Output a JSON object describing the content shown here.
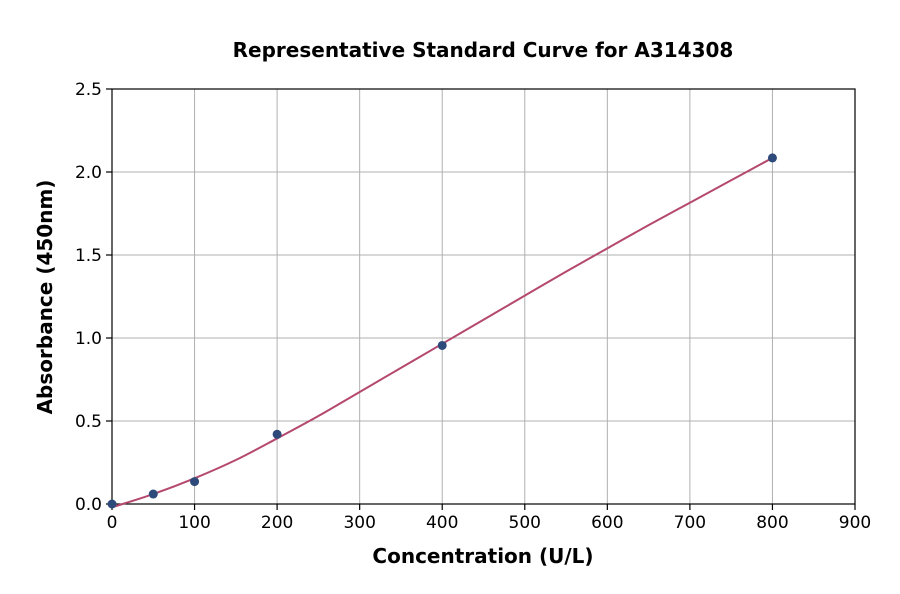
{
  "chart_data": {
    "type": "scatter",
    "title": "Representative Standard Curve for A314308",
    "xlabel": "Concentration (U/L)",
    "ylabel": "Absorbance (450nm)",
    "xlim": [
      0,
      900
    ],
    "ylim": [
      0,
      2.5
    ],
    "xticks": [
      "0",
      "100",
      "200",
      "300",
      "400",
      "500",
      "600",
      "700",
      "800",
      "900"
    ],
    "yticks": [
      "0.0",
      "0.5",
      "1.0",
      "1.5",
      "2.0",
      "2.5"
    ],
    "grid": true,
    "series": [
      {
        "points": [
          {
            "x": 0,
            "y": 0.0
          },
          {
            "x": 50,
            "y": 0.06
          },
          {
            "x": 100,
            "y": 0.135
          },
          {
            "x": 200,
            "y": 0.42
          },
          {
            "x": 400,
            "y": 0.955
          },
          {
            "x": 800,
            "y": 2.085
          }
        ],
        "marker_color": "#2e4a7a"
      }
    ],
    "fit_curve": {
      "x": [
        0,
        50,
        100,
        150,
        200,
        250,
        300,
        350,
        400,
        450,
        500,
        550,
        600,
        650,
        700,
        750,
        800
      ],
      "y": [
        -0.02,
        0.06,
        0.155,
        0.265,
        0.395,
        0.53,
        0.675,
        0.82,
        0.965,
        1.11,
        1.255,
        1.4,
        1.54,
        1.68,
        1.815,
        1.95,
        2.085
      ],
      "line_color": "#b5486e"
    }
  }
}
